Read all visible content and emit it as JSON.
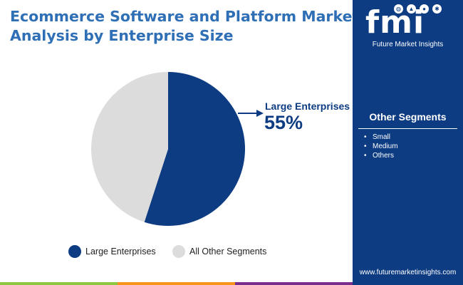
{
  "title_lines": [
    "Ecommerce Software and Platform Market",
    "Analysis by Enterprise Size"
  ],
  "logo": {
    "letters": "fmi",
    "brand": "Future Market Insights"
  },
  "sidebar": {
    "segments_title": "Other Segments",
    "segments": [
      "Small",
      "Medium",
      "Others"
    ],
    "website": "www.futuremarketinsights.com"
  },
  "colors": {
    "brand_blue": "#0d3c82",
    "title_blue": "#2f6fb6",
    "other_grey": "#dcdcdc",
    "bar_green": "#8dc63f",
    "bar_orange": "#f7941d",
    "bar_purple": "#7b2d8e"
  },
  "chart_data": {
    "type": "pie",
    "title": "Ecommerce Software and Platform Market Analysis by Enterprise Size",
    "start_angle_deg": 0,
    "direction": "clockwise",
    "slices": [
      {
        "label": "Large Enterprises",
        "value": 55,
        "color": "#0d3c82"
      },
      {
        "label": "All Other Segments",
        "value": 45,
        "color": "#dcdcdc"
      }
    ],
    "callout": {
      "label": "Large Enterprises",
      "value": "55%"
    },
    "legend": {
      "position": "bottom",
      "items": [
        "Large Enterprises",
        "All Other Segments"
      ]
    }
  }
}
